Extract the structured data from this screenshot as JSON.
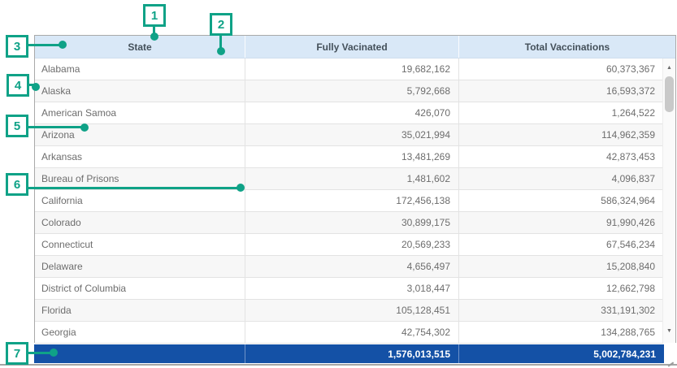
{
  "table": {
    "columns": [
      "State",
      "Fully Vacinated",
      "Total Vaccinations"
    ],
    "rows": [
      {
        "state": "Alabama",
        "fully_vaccinated": "19,682,162",
        "total_vaccinations": "60,373,367"
      },
      {
        "state": "Alaska",
        "fully_vaccinated": "5,792,668",
        "total_vaccinations": "16,593,372"
      },
      {
        "state": "American Samoa",
        "fully_vaccinated": "426,070",
        "total_vaccinations": "1,264,522"
      },
      {
        "state": "Arizona",
        "fully_vaccinated": "35,021,994",
        "total_vaccinations": "114,962,359"
      },
      {
        "state": "Arkansas",
        "fully_vaccinated": "13,481,269",
        "total_vaccinations": "42,873,453"
      },
      {
        "state": "Bureau of Prisons",
        "fully_vaccinated": "1,481,602",
        "total_vaccinations": "4,096,837"
      },
      {
        "state": "California",
        "fully_vaccinated": "172,456,138",
        "total_vaccinations": "586,324,964"
      },
      {
        "state": "Colorado",
        "fully_vaccinated": "30,899,175",
        "total_vaccinations": "91,990,426"
      },
      {
        "state": "Connecticut",
        "fully_vaccinated": "20,569,233",
        "total_vaccinations": "67,546,234"
      },
      {
        "state": "Delaware",
        "fully_vaccinated": "4,656,497",
        "total_vaccinations": "15,208,840"
      },
      {
        "state": "District of Columbia",
        "fully_vaccinated": "3,018,447",
        "total_vaccinations": "12,662,798"
      },
      {
        "state": "Florida",
        "fully_vaccinated": "105,128,451",
        "total_vaccinations": "331,191,302"
      },
      {
        "state": "Georgia",
        "fully_vaccinated": "42,754,302",
        "total_vaccinations": "134,288,765"
      }
    ],
    "summary": {
      "fully_vaccinated": "1,576,013,515",
      "total_vaccinations": "5,002,784,231"
    }
  },
  "scrollbar": {
    "up_arrow": "▲",
    "down_arrow": "▼"
  },
  "callouts": [
    "1",
    "2",
    "3",
    "4",
    "5",
    "6",
    "7"
  ],
  "colors": {
    "annotation_accent": "#0fa287",
    "header_background": "#d9e8f7",
    "summary_background": "#1451a6"
  }
}
